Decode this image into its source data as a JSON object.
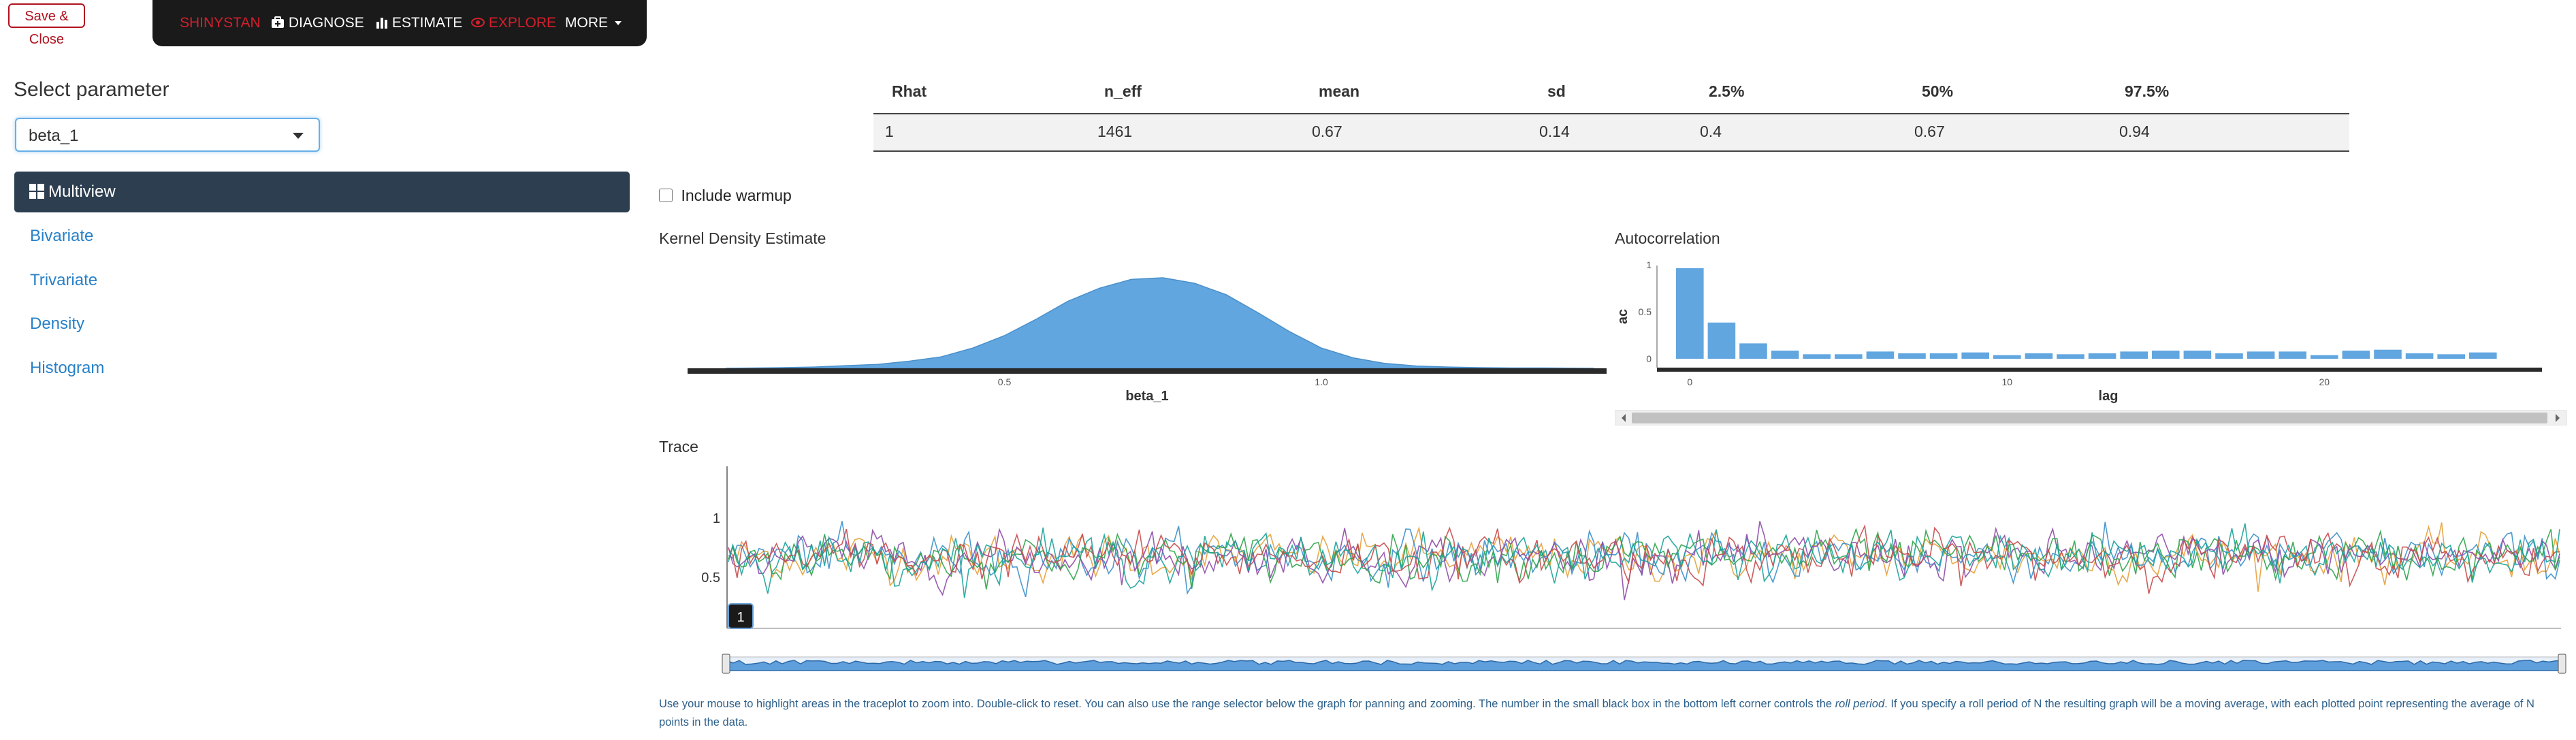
{
  "toolbar": {
    "save_close": "Save & Close"
  },
  "navbar": {
    "brand": "SHINYSTAN",
    "items": [
      {
        "icon": "stethoscope-icon",
        "label": "DIAGNOSE"
      },
      {
        "icon": "bar-chart-icon",
        "label": "ESTIMATE"
      },
      {
        "icon": "eye-icon",
        "label": "EXPLORE"
      },
      {
        "label": "MORE"
      }
    ]
  },
  "sidebar": {
    "select_label": "Select parameter",
    "selected_param": "beta_1",
    "active_item": "Multiview",
    "items": [
      "Bivariate",
      "Trivariate",
      "Density",
      "Histogram"
    ]
  },
  "summary_table": {
    "headers": [
      "Rhat",
      "n_eff",
      "mean",
      "sd",
      "2.5%",
      "50%",
      "97.5%"
    ],
    "row": [
      "1",
      "1461",
      "0.67",
      "0.14",
      "0.4",
      "0.67",
      "0.94"
    ]
  },
  "options": {
    "include_warmup_label": "Include warmup",
    "include_warmup": false
  },
  "kde": {
    "title": "Kernel Density Estimate",
    "xlabel": "beta_1",
    "ticks": [
      "0.5",
      "1.0"
    ]
  },
  "acf": {
    "title": "Autocorrelation",
    "xlabel": "lag",
    "ylabel": "ac",
    "yticks": [
      "0",
      "0.5",
      "1"
    ],
    "xticks": [
      "0",
      "10",
      "20"
    ]
  },
  "trace": {
    "title": "Trace",
    "yticks": [
      "1",
      "0.5"
    ],
    "roll_period": "1"
  },
  "help_text": {
    "part1": "Use your mouse to highlight areas in the traceplot to zoom into. Double-click to reset. You can also use the range selector below the graph for panning and zooming. The number in the small black box in the bottom left corner controls the ",
    "italic": "roll period",
    "part2": ". If you specify a roll period of N the resulting graph will be a moving average, with each plotted point representing the average of N points in the data."
  },
  "chart_data": [
    {
      "type": "area",
      "title": "Kernel Density Estimate",
      "xlabel": "beta_1",
      "x": [
        0.06,
        0.15,
        0.2,
        0.25,
        0.3,
        0.35,
        0.4,
        0.45,
        0.5,
        0.55,
        0.6,
        0.65,
        0.7,
        0.75,
        0.8,
        0.85,
        0.9,
        0.95,
        1.0,
        1.05,
        1.1,
        1.15,
        1.2,
        1.25,
        1.3,
        1.35,
        1.43
      ],
      "y": [
        0.0,
        0.02,
        0.04,
        0.08,
        0.12,
        0.22,
        0.35,
        0.62,
        1.0,
        1.5,
        2.05,
        2.45,
        2.72,
        2.77,
        2.6,
        2.25,
        1.7,
        1.12,
        0.62,
        0.32,
        0.15,
        0.07,
        0.04,
        0.02,
        0.01,
        0.01,
        0.0
      ],
      "xlim": [
        0.0,
        1.45
      ]
    },
    {
      "type": "bar",
      "title": "Autocorrelation",
      "xlabel": "lag",
      "ylabel": "ac",
      "categories": [
        0,
        1,
        2,
        3,
        4,
        5,
        6,
        7,
        8,
        9,
        10,
        11,
        12,
        13,
        14,
        15,
        16,
        17,
        18,
        19,
        20,
        21,
        22,
        23,
        24,
        25
      ],
      "values": [
        1.0,
        0.4,
        0.17,
        0.09,
        0.05,
        0.05,
        0.08,
        0.06,
        0.06,
        0.07,
        0.04,
        0.06,
        0.05,
        0.06,
        0.08,
        0.09,
        0.09,
        0.06,
        0.08,
        0.08,
        0.04,
        0.09,
        0.1,
        0.06,
        0.05,
        0.07
      ],
      "ylim": [
        -0.1,
        1.05
      ]
    },
    {
      "type": "line",
      "title": "Trace",
      "series": [
        {
          "color": "#e6a03a"
        },
        {
          "color": "#3a8fc9"
        },
        {
          "color": "#8e4ba8"
        },
        {
          "color": "#2fa34a"
        },
        {
          "color": "#c84a4a"
        },
        {
          "color": "#1aa39a"
        }
      ],
      "iterations": 1000,
      "mean": 0.67,
      "sd": 0.14,
      "ylim": [
        0.3,
        1.4
      ]
    }
  ]
}
